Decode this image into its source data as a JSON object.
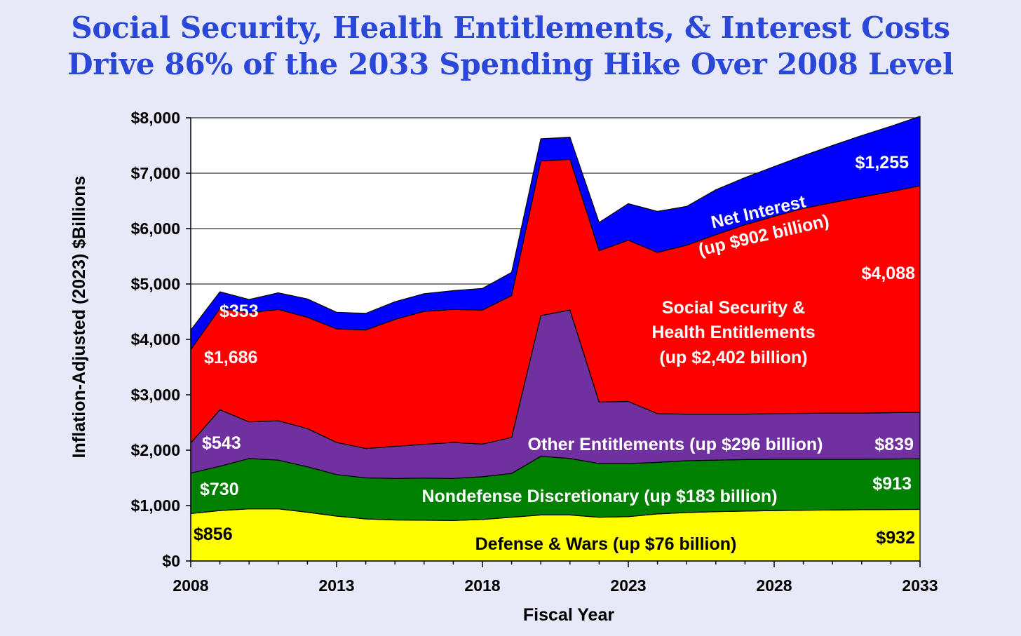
{
  "title": {
    "line1": "Social Security, Health Entitlements, & Interest Costs",
    "line2": "Drive 86% of the 2033 Spending Hike Over 2008 Level"
  },
  "colors": {
    "background": "#e8e9f8",
    "title": "#2b47d8",
    "plot_background": "#ffffff",
    "defense": "#ffff00",
    "nondefense": "#008000",
    "other_entitlements": "#7030a0",
    "social_security_health": "#ff0000",
    "net_interest": "#0000ff"
  },
  "chart_data": {
    "type": "area",
    "stacked": true,
    "xlabel": "Fiscal Year",
    "ylabel": "Inflation-Adjusted (2023) $Billions",
    "xlim": [
      2008,
      2033
    ],
    "ylim": [
      0,
      8000
    ],
    "x_ticks": [
      2008,
      2013,
      2018,
      2023,
      2028,
      2033
    ],
    "y_ticks": [
      0,
      1000,
      2000,
      3000,
      4000,
      5000,
      6000,
      7000,
      8000
    ],
    "y_tick_labels": [
      "$0",
      "$1,000",
      "$2,000",
      "$3,000",
      "$4,000",
      "$5,000",
      "$6,000",
      "$7,000",
      "$8,000"
    ],
    "grid": "horizontal",
    "x": [
      2008,
      2009,
      2010,
      2011,
      2012,
      2013,
      2014,
      2015,
      2016,
      2017,
      2018,
      2019,
      2020,
      2021,
      2022,
      2023,
      2024,
      2025,
      2026,
      2027,
      2028,
      2029,
      2030,
      2031,
      2032,
      2033
    ],
    "series": [
      {
        "key": "defense",
        "values": [
          856,
          910,
          940,
          940,
          880,
          810,
          760,
          740,
          735,
          730,
          750,
          790,
          830,
          830,
          790,
          800,
          850,
          875,
          890,
          900,
          910,
          915,
          920,
          925,
          928,
          932
        ]
      },
      {
        "key": "nondefense",
        "values": [
          730,
          800,
          910,
          880,
          820,
          750,
          740,
          750,
          760,
          760,
          770,
          790,
          1060,
          1020,
          970,
          960,
          930,
          935,
          930,
          930,
          925,
          920,
          915,
          910,
          912,
          913
        ]
      },
      {
        "key": "other_entitlements",
        "values": [
          543,
          1020,
          660,
          710,
          690,
          580,
          530,
          580,
          610,
          650,
          590,
          650,
          2540,
          2680,
          1110,
          1120,
          880,
          840,
          830,
          820,
          825,
          830,
          835,
          835,
          837,
          839
        ]
      },
      {
        "key": "social_security_health",
        "values": [
          1686,
          1830,
          1970,
          2010,
          2010,
          2050,
          2140,
          2290,
          2400,
          2400,
          2420,
          2560,
          2790,
          2720,
          2730,
          2910,
          2910,
          3050,
          3240,
          3420,
          3560,
          3700,
          3800,
          3900,
          3990,
          4088
        ]
      },
      {
        "key": "net_interest",
        "values": [
          353,
          300,
          240,
          300,
          330,
          300,
          300,
          320,
          320,
          340,
          390,
          420,
          400,
          400,
          510,
          660,
          740,
          700,
          810,
          850,
          900,
          950,
          1030,
          1110,
          1180,
          1255
        ]
      }
    ],
    "data_labels": {
      "defense_2008": "$856",
      "defense_2033": "$932",
      "nondefense_2008": "$730",
      "nondefense_2033": "$913",
      "other_2008": "$543",
      "other_2033": "$839",
      "ss_2008": "$1,686",
      "ss_2033": "$4,088",
      "interest_2008": "$353",
      "interest_2033": "$1,255"
    },
    "annotations": {
      "defense": "Defense & Wars (up $76 billion)",
      "nondefense": "Nondefense Discretionary (up $183 billion)",
      "other": "Other Entitlements (up $296 billion)",
      "ss_line1": "Social Security &",
      "ss_line2": "Health Entitlements",
      "ss_line3": "(up $2,402 billion)",
      "interest_line1": "Net Interest",
      "interest_line2": "(up $902 billion)"
    }
  }
}
